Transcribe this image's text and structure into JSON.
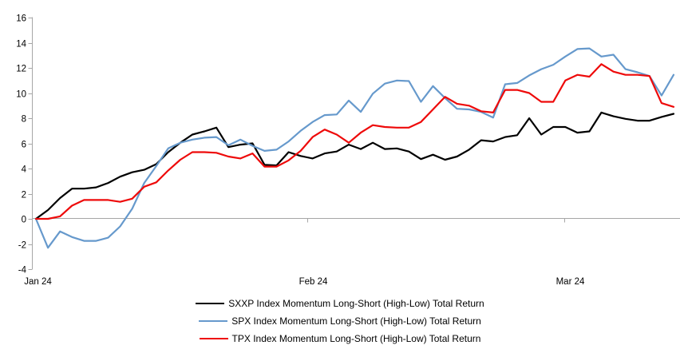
{
  "chart_data": {
    "type": "line",
    "title": "",
    "xlabel": "",
    "ylabel": "",
    "ylim": [
      -4,
      16
    ],
    "yticks": [
      16,
      14,
      12,
      10,
      8,
      6,
      4,
      2,
      0,
      -2,
      -4
    ],
    "grid": false,
    "zero_line": true,
    "legend_position": "bottom-center",
    "axis_color": "#a6a6a6",
    "x_ticks": [
      {
        "label": "Jan 24",
        "pos": 0.0
      },
      {
        "label": "Feb 24",
        "pos": 0.426
      },
      {
        "label": "Mar 24",
        "pos": 0.823
      }
    ],
    "series": [
      {
        "name": "SXXP Index Momentum Long-Short (High-Low) Total Return",
        "color": "#000000",
        "values": [
          0.0,
          0.7,
          1.65,
          2.4,
          2.4,
          2.5,
          2.85,
          3.35,
          3.7,
          3.9,
          4.35,
          5.3,
          6.05,
          6.7,
          6.95,
          7.25,
          5.7,
          5.9,
          6.0,
          4.3,
          4.25,
          5.3,
          5.0,
          4.8,
          5.2,
          5.35,
          5.9,
          5.55,
          6.05,
          5.55,
          5.6,
          5.35,
          4.75,
          5.1,
          4.7,
          4.95,
          5.5,
          6.25,
          6.15,
          6.5,
          6.65,
          8.0,
          6.7,
          7.3,
          7.3,
          6.85,
          6.95,
          8.45,
          8.15,
          7.95,
          7.8,
          7.8,
          8.1,
          8.35
        ]
      },
      {
        "name": "SPX Index Momentum Long-Short (High-Low) Total Return",
        "color": "#6699cc",
        "values": [
          0.0,
          -2.3,
          -1.0,
          -1.45,
          -1.75,
          -1.75,
          -1.5,
          -0.6,
          0.8,
          2.85,
          4.2,
          5.6,
          6.05,
          6.3,
          6.45,
          6.5,
          5.85,
          6.3,
          5.8,
          5.4,
          5.5,
          6.15,
          7.0,
          7.7,
          8.25,
          8.3,
          9.4,
          8.5,
          9.95,
          10.75,
          11.0,
          10.95,
          9.3,
          10.55,
          9.6,
          8.75,
          8.7,
          8.5,
          8.05,
          10.7,
          10.8,
          11.4,
          11.9,
          12.25,
          12.9,
          13.5,
          13.55,
          12.9,
          13.05,
          11.9,
          11.65,
          11.35,
          9.8,
          11.45
        ]
      },
      {
        "name": "TPX Index Momentum Long-Short (High-Low) Total Return",
        "color": "#ee0a0a",
        "values": [
          0.0,
          0.0,
          0.2,
          1.05,
          1.5,
          1.5,
          1.5,
          1.35,
          1.6,
          2.55,
          2.9,
          3.85,
          4.7,
          5.3,
          5.3,
          5.25,
          4.95,
          4.8,
          5.2,
          4.15,
          4.15,
          4.65,
          5.4,
          6.5,
          7.1,
          6.7,
          6.05,
          6.85,
          7.45,
          7.3,
          7.25,
          7.25,
          7.7,
          8.7,
          9.7,
          9.15,
          9.0,
          8.55,
          8.45,
          10.25,
          10.25,
          10.0,
          9.3,
          9.3,
          11.0,
          11.45,
          11.3,
          12.3,
          11.7,
          11.45,
          11.45,
          11.35,
          9.2,
          8.9
        ]
      }
    ]
  }
}
